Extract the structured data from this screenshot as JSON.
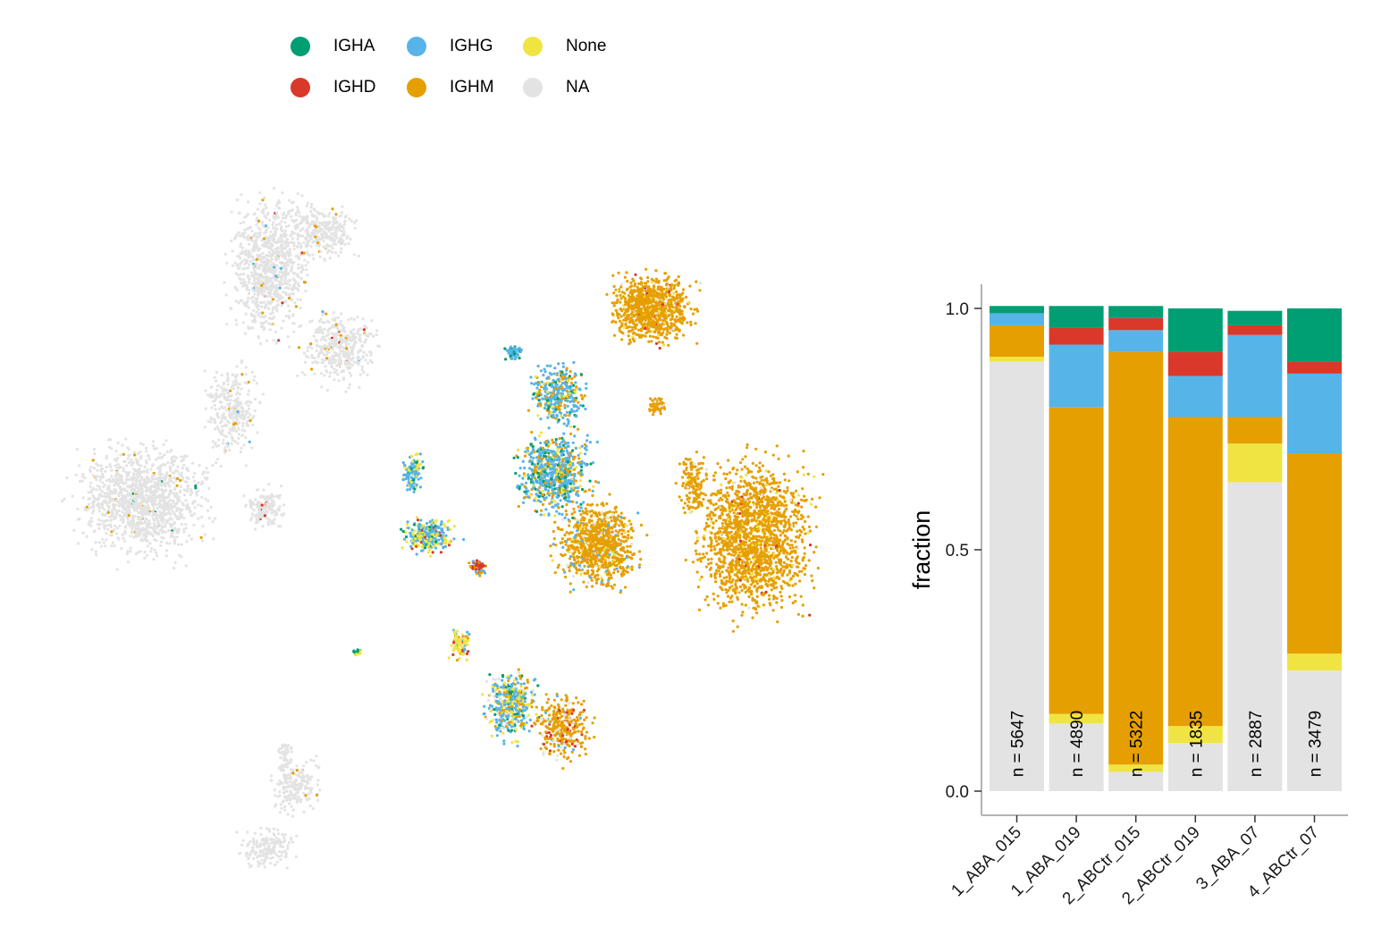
{
  "legend": {
    "items": [
      {
        "label": "IGHA",
        "color": "#009E73"
      },
      {
        "label": "IGHD",
        "color": "#D9382A"
      },
      {
        "label": "IGHG",
        "color": "#56B4E9"
      },
      {
        "label": "IGHM",
        "color": "#E69F00"
      },
      {
        "label": "None",
        "color": "#F0E442"
      },
      {
        "label": "NA",
        "color": "#E3E3E3"
      }
    ]
  },
  "chart_data": [
    {
      "type": "scatter",
      "title": "",
      "xlabel": "",
      "ylabel": "",
      "axes_visible": false,
      "series": [
        {
          "name": "NA",
          "color": "#E3E3E3"
        },
        {
          "name": "IGHM",
          "color": "#E69F00"
        },
        {
          "name": "IGHG",
          "color": "#56B4E9"
        },
        {
          "name": "IGHA",
          "color": "#009E73"
        },
        {
          "name": "None",
          "color": "#F0E442"
        },
        {
          "name": "IGHD",
          "color": "#D9382A"
        }
      ]
    },
    {
      "type": "bar",
      "stacked": true,
      "categories": [
        "1_ABA_015",
        "1_ABA_019",
        "2_ABCtr_015",
        "2_ABCtr_019",
        "3_ABA_07",
        "4_ABCtr_07"
      ],
      "counts": [
        "n = 5647",
        "n = 4890",
        "n = 5322",
        "n = 1835",
        "n = 2887",
        "n = 3479"
      ],
      "stack_order_bottom_to_top": [
        "NA",
        "None",
        "IGHM",
        "IGHG",
        "IGHD",
        "IGHA"
      ],
      "series": [
        {
          "name": "NA",
          "color": "#E3E3E3",
          "values": [
            0.89,
            0.14,
            0.04,
            0.1,
            0.64,
            0.25
          ]
        },
        {
          "name": "None",
          "color": "#F0E442",
          "values": [
            0.01,
            0.02,
            0.015,
            0.035,
            0.08,
            0.035
          ]
        },
        {
          "name": "IGHM",
          "color": "#E69F00",
          "values": [
            0.065,
            0.635,
            0.855,
            0.64,
            0.055,
            0.415
          ]
        },
        {
          "name": "IGHG",
          "color": "#56B4E9",
          "values": [
            0.025,
            0.13,
            0.045,
            0.085,
            0.17,
            0.165
          ]
        },
        {
          "name": "IGHD",
          "color": "#D9382A",
          "values": [
            0.0,
            0.035,
            0.025,
            0.05,
            0.02,
            0.025
          ]
        },
        {
          "name": "IGHA",
          "color": "#009E73",
          "values": [
            0.015,
            0.045,
            0.025,
            0.09,
            0.03,
            0.11
          ]
        }
      ],
      "ylabel": "fraction",
      "xlabel": "",
      "ylim": [
        0,
        1
      ],
      "yticks": [
        "0.0",
        "0.5",
        "1.0"
      ],
      "ytick_values": [
        0,
        0.5,
        1.0
      ]
    }
  ]
}
